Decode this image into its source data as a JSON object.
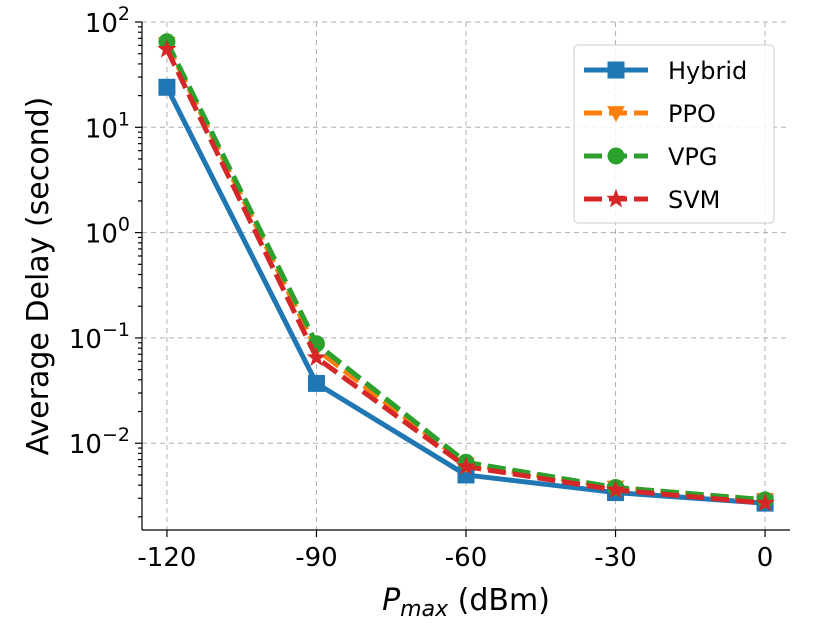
{
  "chart_data": {
    "type": "line",
    "y_scale": "log",
    "x": [
      -120,
      -90,
      -60,
      -30,
      0
    ],
    "x_tick_labels": [
      "-120",
      "-90",
      "-60",
      "-30",
      "0"
    ],
    "xlim": [
      -125,
      5
    ],
    "ylim": [
      0.0015,
      100
    ],
    "y_ticks": [
      {
        "base": "10",
        "exp": "2",
        "value": 100
      },
      {
        "base": "10",
        "exp": "1",
        "value": 10
      },
      {
        "base": "10",
        "exp": "0",
        "value": 1
      },
      {
        "base": "10",
        "exp": "−1",
        "value": 0.1
      },
      {
        "base": "10",
        "exp": "−2",
        "value": 0.01
      }
    ],
    "xlabel_main": "P",
    "xlabel_sub": "max",
    "xlabel_unit": " (dBm)",
    "ylabel": "Average Delay (second)",
    "grid": true,
    "legend_position": "top-right",
    "series": [
      {
        "name": "Hybrid",
        "color": "#1f77b4",
        "marker": "square",
        "dash": "solid",
        "values": [
          24,
          0.037,
          0.005,
          0.0034,
          0.0027
        ]
      },
      {
        "name": "PPO",
        "color": "#ff7f0e",
        "marker": "triangle-down",
        "dash": "dashed",
        "values": [
          62,
          0.078,
          0.0063,
          0.0038,
          0.0029
        ]
      },
      {
        "name": "VPG",
        "color": "#2ca02c",
        "marker": "circle",
        "dash": "dashed",
        "values": [
          65,
          0.088,
          0.0066,
          0.0038,
          0.0029
        ]
      },
      {
        "name": "SVM",
        "color": "#d62728",
        "marker": "star",
        "dash": "dashed",
        "values": [
          55,
          0.065,
          0.006,
          0.0036,
          0.0027
        ]
      }
    ]
  }
}
